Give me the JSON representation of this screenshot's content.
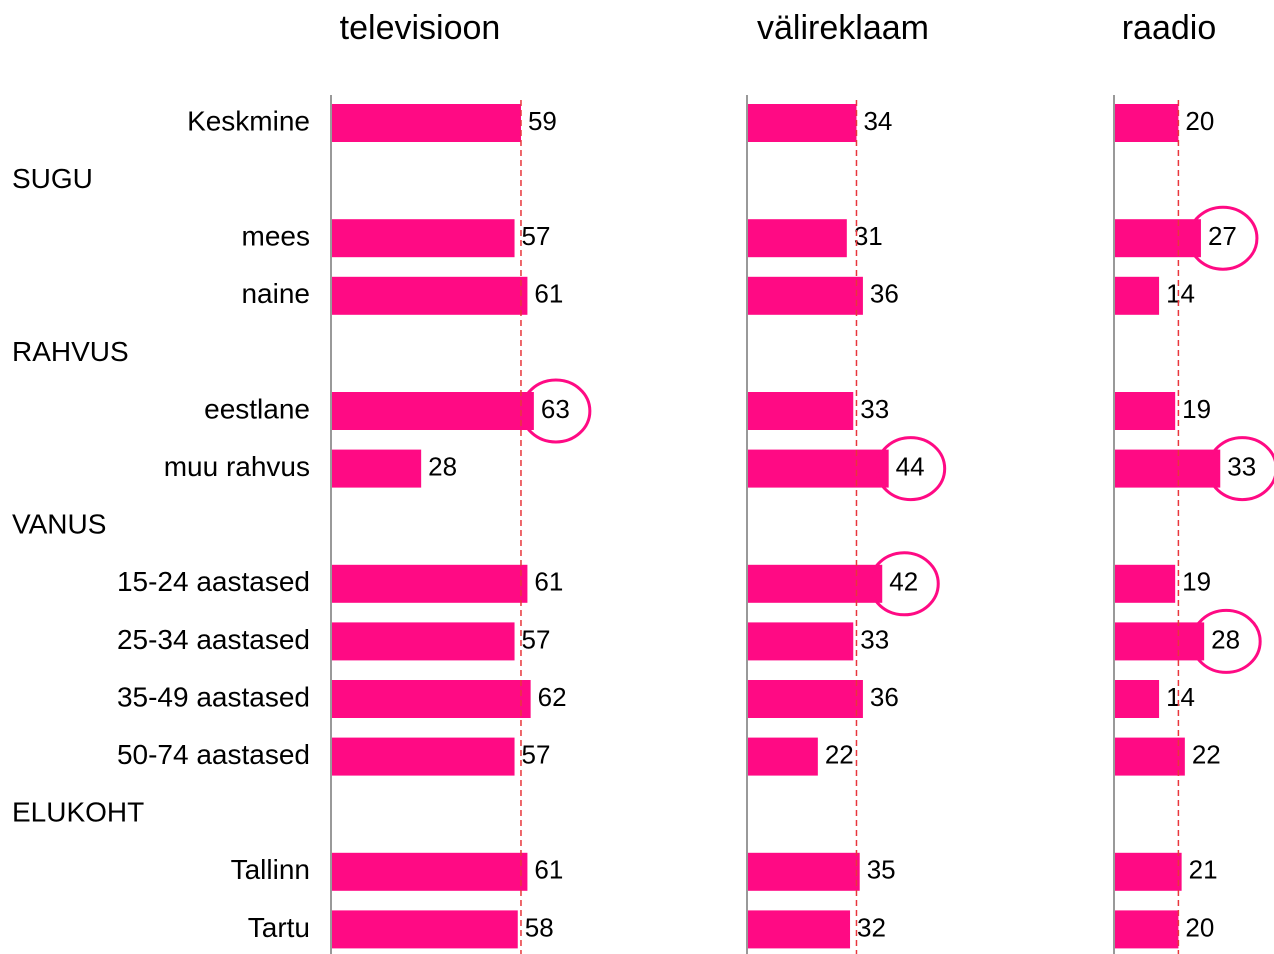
{
  "chart_data": {
    "type": "bar",
    "orientation": "horizontal",
    "categories": [
      "Keskmine",
      "SUGU",
      "mees",
      "naine",
      "RAHVUS",
      "eestlane",
      "muu rahvus",
      "VANUS",
      "15-24 aastased",
      "25-34 aastased",
      "35-49 aastased",
      "50-74 aastased",
      "ELUKOHT",
      "Tallinn",
      "Tartu"
    ],
    "color": "#ff0a84",
    "series": [
      {
        "name": "televisioon",
        "values": [
          59,
          null,
          57,
          61,
          null,
          63,
          28,
          null,
          61,
          57,
          62,
          57,
          null,
          61,
          58
        ],
        "highlight": [
          5
        ]
      },
      {
        "name": "välireklaam",
        "values": [
          34,
          null,
          31,
          36,
          null,
          33,
          44,
          null,
          42,
          33,
          36,
          22,
          null,
          35,
          32
        ],
        "highlight": [
          6,
          8
        ]
      },
      {
        "name": "raadio",
        "values": [
          20,
          null,
          27,
          14,
          null,
          19,
          33,
          null,
          19,
          28,
          14,
          22,
          null,
          21,
          20
        ],
        "highlight": [
          2,
          6,
          9
        ]
      }
    ]
  }
}
